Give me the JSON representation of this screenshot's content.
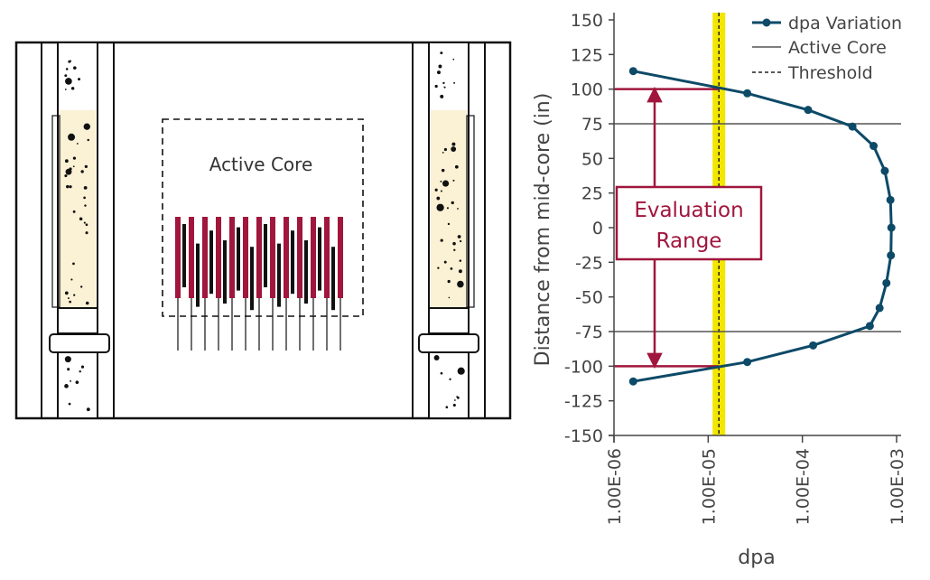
{
  "diagram": {
    "active_core_label": "Active Core"
  },
  "chart_data": {
    "type": "line",
    "xlabel": "dpa",
    "ylabel": "Distance from mid-core (in)",
    "x_scale": "log",
    "xlim": [
      1e-06,
      0.001
    ],
    "ylim": [
      -150,
      150
    ],
    "x_ticks": [
      "1.00E-06",
      "1.00E-05",
      "1.00E-04",
      "1.00E-03"
    ],
    "y_ticks": [
      "150",
      "125",
      "100",
      "75",
      "50",
      "25",
      "0",
      "-25",
      "-50",
      "-75",
      "-100",
      "-125",
      "-150"
    ],
    "y_tick_values": [
      150,
      125,
      100,
      75,
      50,
      25,
      0,
      -25,
      -50,
      -75,
      -100,
      -125,
      -150
    ],
    "series": [
      {
        "name": "dpa Variation",
        "color": "#0d4a68",
        "points": [
          {
            "x": 1.6e-06,
            "y": 113
          },
          {
            "x": 2.6e-05,
            "y": 97
          },
          {
            "x": 0.000115,
            "y": 85
          },
          {
            "x": 0.00034,
            "y": 73
          },
          {
            "x": 0.00057,
            "y": 59
          },
          {
            "x": 0.00075,
            "y": 41
          },
          {
            "x": 0.00086,
            "y": 20
          },
          {
            "x": 0.00088,
            "y": 0
          },
          {
            "x": 0.00087,
            "y": -20
          },
          {
            "x": 0.00078,
            "y": -40
          },
          {
            "x": 0.00066,
            "y": -58
          },
          {
            "x": 0.00052,
            "y": -71
          },
          {
            "x": 0.00013,
            "y": -85
          },
          {
            "x": 2.6e-05,
            "y": -97
          },
          {
            "x": 1.6e-06,
            "y": -111
          }
        ]
      }
    ],
    "active_core": {
      "name": "Active Core",
      "y_values": [
        75,
        -75
      ],
      "color": "#555555"
    },
    "threshold": {
      "name": "Threshold",
      "x": 1.3e-05,
      "color": "#222222",
      "band_color": "#f3e600"
    },
    "evaluation_range": {
      "label_line1": "Evaluation",
      "label_line2": "Range",
      "y_values": [
        100,
        -100
      ],
      "color": "#a0163c"
    },
    "legend": {
      "placement": "top-right",
      "entries": [
        "dpa Variation",
        "Active Core",
        "Threshold"
      ]
    }
  }
}
